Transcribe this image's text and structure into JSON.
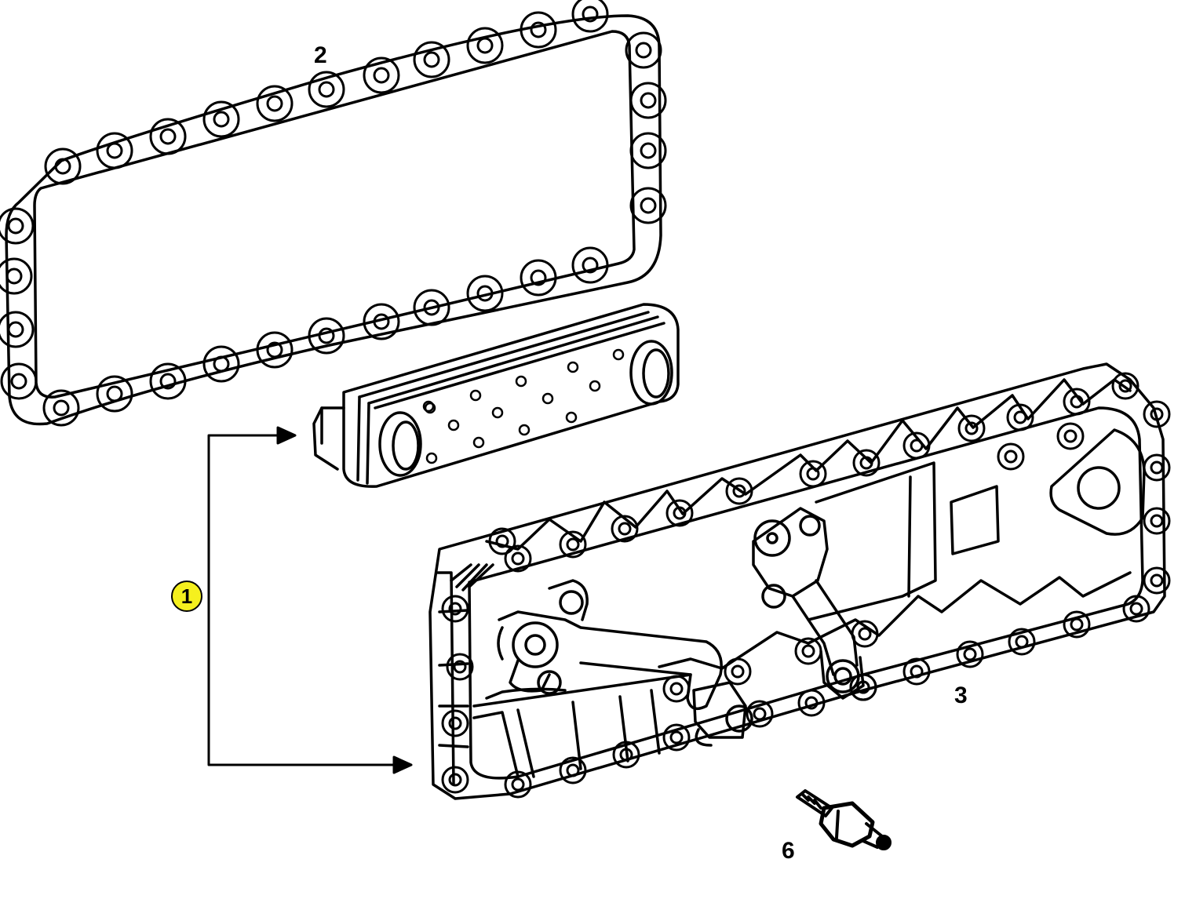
{
  "diagram": {
    "callout": {
      "label": "1",
      "fill_color": "#f5f01e"
    },
    "labels": {
      "gasket": "2",
      "cover": "3",
      "sensor": "6"
    }
  }
}
